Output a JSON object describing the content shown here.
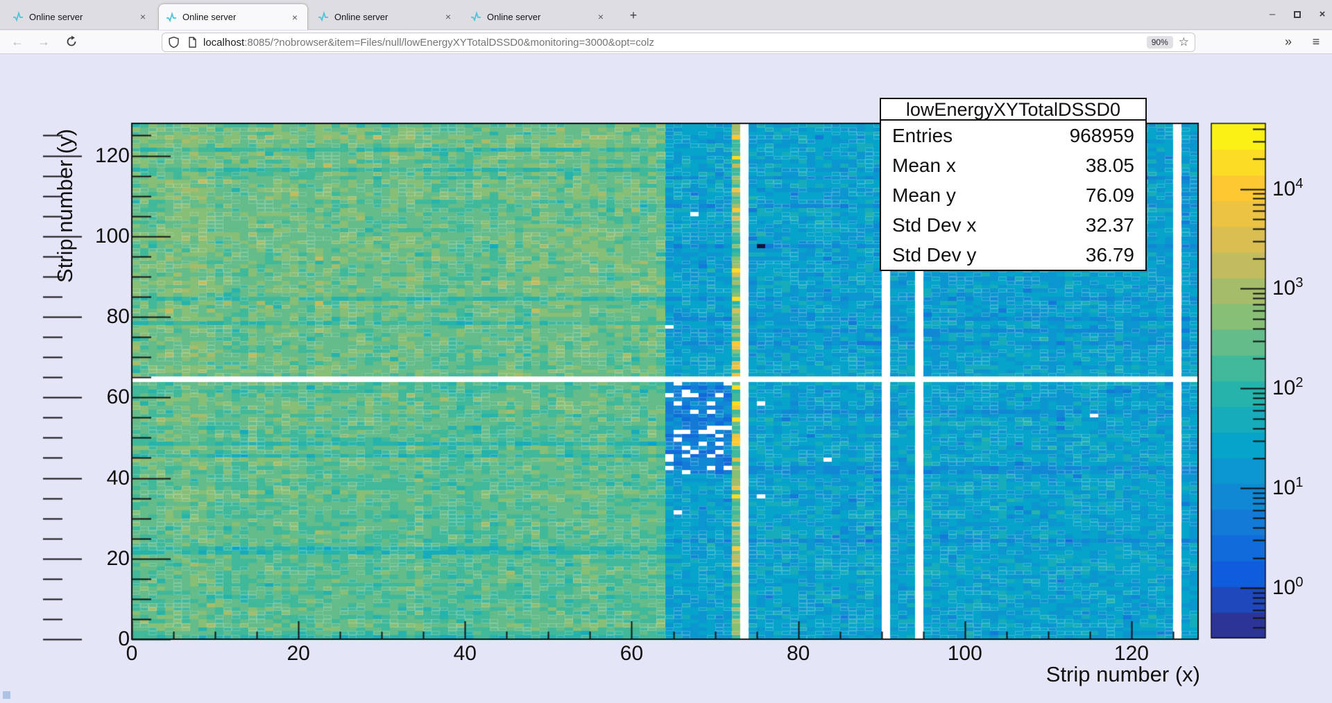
{
  "browser": {
    "tabs": [
      {
        "label": "Online server"
      },
      {
        "label": "Online server"
      },
      {
        "label": "Online server"
      },
      {
        "label": "Online server"
      }
    ],
    "active_tab": 1,
    "close_glyph": "×",
    "new_tab_label": "+",
    "window_controls": {
      "minimize": "–",
      "close": "×"
    },
    "nav": {
      "back": "←",
      "forward": "→"
    },
    "url": {
      "host": "localhost",
      "rest": ":8085/?nobrowser&item=Files/null/lowEnergyXYTotalDSSD0&monitoring=3000&opt=colz"
    },
    "zoom_badge": "90%",
    "star_glyph": "☆",
    "overflow_glyph": "»",
    "menu_glyph": "≡"
  },
  "chart_data": {
    "type": "heatmap",
    "title": "lowEnergyXYTotalDSSD0",
    "xlabel": "Strip number (x)",
    "ylabel": "Strip number (y)",
    "x_range": [
      0,
      128
    ],
    "y_range": [
      0,
      128
    ],
    "x_tick_values": [
      0,
      20,
      40,
      60,
      80,
      100,
      120
    ],
    "x_tick_labels": [
      "0",
      "20",
      "40",
      "60",
      "80",
      "100",
      "120"
    ],
    "y_tick_values": [
      0,
      20,
      40,
      60,
      80,
      100,
      120
    ],
    "y_tick_labels": [
      "0",
      "20",
      "40",
      "60",
      "80",
      "100",
      "120"
    ],
    "minor_tick_step": 5,
    "z_scale": "log",
    "z_min": 0.316,
    "z_max": 30000,
    "n_contours": 20,
    "palette_name": "ROOT-bird",
    "palette": [
      "#352a87",
      "#0f5cdd",
      "#1481d6",
      "#06a4ca",
      "#2eb7a4",
      "#87bf77",
      "#d1bb59",
      "#fec832",
      "#f9fb0e"
    ],
    "colorbar_base": "10",
    "colorbar_exponents": [
      "4",
      "3",
      "2",
      "1",
      "0"
    ],
    "stats": {
      "title": "lowEnergyXYTotalDSSD0",
      "rows": [
        {
          "label": "Entries",
          "value": "968959"
        },
        {
          "label": "Mean x",
          "value": "38.05"
        },
        {
          "label": "Mean y",
          "value": "76.09"
        },
        {
          "label": "Std Dev x",
          "value": "32.37"
        },
        {
          "label": "Std Dev y",
          "value": "36.79"
        }
      ]
    },
    "features": {
      "seed": 7,
      "white_row": 64,
      "white_cols": [
        73,
        90,
        94,
        125
      ],
      "hot_col": 72,
      "regions": {
        "left_top_base": 300,
        "left_bottom_base": 230,
        "right_base": 22,
        "cluster": {
          "x": [
            64,
            71
          ],
          "y": [
            41,
            63
          ],
          "base": 6,
          "empty_prob": 0.18
        }
      },
      "empty_cells": [
        [
          67,
          105
        ],
        [
          64,
          77
        ],
        [
          75,
          58
        ],
        [
          83,
          44
        ],
        [
          115,
          55
        ],
        [
          75,
          35
        ],
        [
          65,
          31
        ]
      ],
      "dark_cell": {
        "x": 75,
        "y": 97,
        "color": "#16123f"
      }
    }
  }
}
